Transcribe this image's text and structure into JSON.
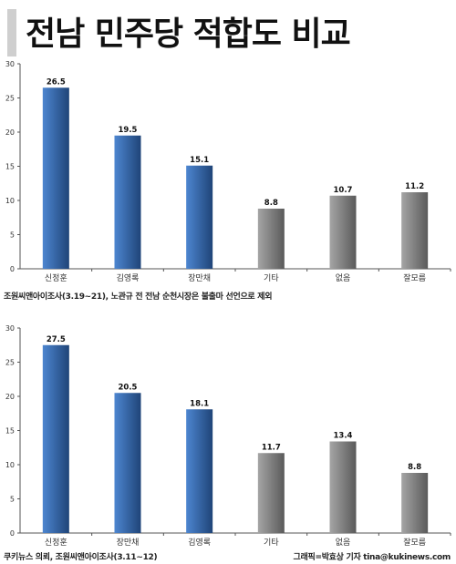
{
  "page": {
    "title": "전남 민주당 적합도 비교",
    "note1": "조원씨앤아이조사(3.19~21), 노관규 전 전남 순천시장은 불출마 선언으로 제외",
    "note2_left": "쿠키뉴스 의뢰, 조원씨앤아이조사(3.11~12)",
    "note2_right": "그래픽=박효상 기자 tina@kukinews.com"
  },
  "chart_data": [
    {
      "type": "bar",
      "categories": [
        "신정훈",
        "김영록",
        "장만채",
        "기타",
        "없음",
        "잘모름"
      ],
      "values": [
        26.5,
        19.5,
        15.1,
        8.8,
        10.7,
        11.2
      ],
      "value_labels": [
        "26.5",
        "19.5",
        "15.1",
        "8.8",
        "10.7",
        "11.2"
      ],
      "yticks": [
        "0",
        "5",
        "10",
        "15",
        "20",
        "25",
        "30"
      ],
      "ylim": [
        0,
        30
      ],
      "bar_colors": [
        "#3a6bb5",
        "#3a6bb5",
        "#3a6bb5",
        "#8a8a8a",
        "#8a8a8a",
        "#8a8a8a"
      ],
      "grid": false,
      "legend": "none"
    },
    {
      "type": "bar",
      "categories": [
        "신정훈",
        "장만채",
        "김영록",
        "기타",
        "없음",
        "잘모름"
      ],
      "values": [
        27.5,
        20.5,
        18.1,
        11.7,
        13.4,
        8.8
      ],
      "value_labels": [
        "27.5",
        "20.5",
        "18.1",
        "11.7",
        "13.4",
        "8.8"
      ],
      "yticks": [
        "0",
        "5",
        "10",
        "15",
        "20",
        "25",
        "30"
      ],
      "ylim": [
        0,
        30
      ],
      "bar_colors": [
        "#3a6bb5",
        "#3a6bb5",
        "#3a6bb5",
        "#8a8a8a",
        "#8a8a8a",
        "#8a8a8a"
      ],
      "grid": false,
      "legend": "none"
    }
  ]
}
